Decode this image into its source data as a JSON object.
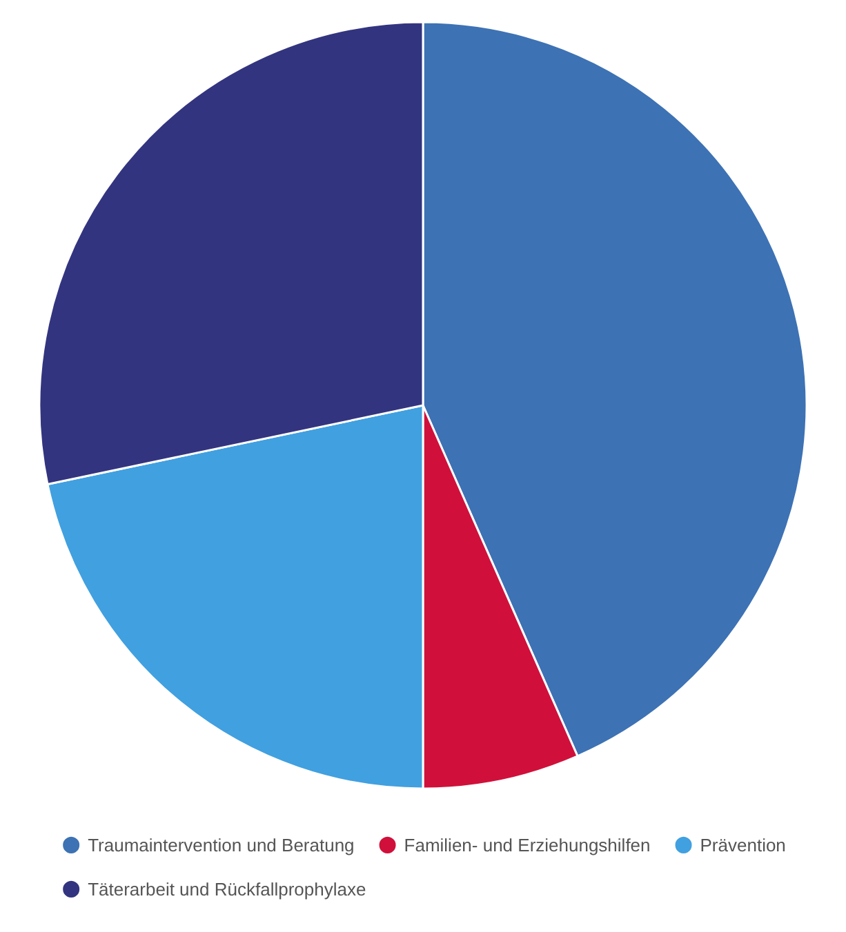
{
  "chart_data": {
    "type": "pie",
    "categories": [
      "Traumaintervention und Beratung",
      "Familien- und Erziehungshilfen",
      "Prävention",
      "Täterarbeit und Rückfallprophylaxe"
    ],
    "values": [
      43.4,
      6.6,
      21.7,
      28.3
    ],
    "colors": [
      "#3d72b4",
      "#d0103a",
      "#41a0e0",
      "#33347f"
    ],
    "legend": "bottom"
  }
}
